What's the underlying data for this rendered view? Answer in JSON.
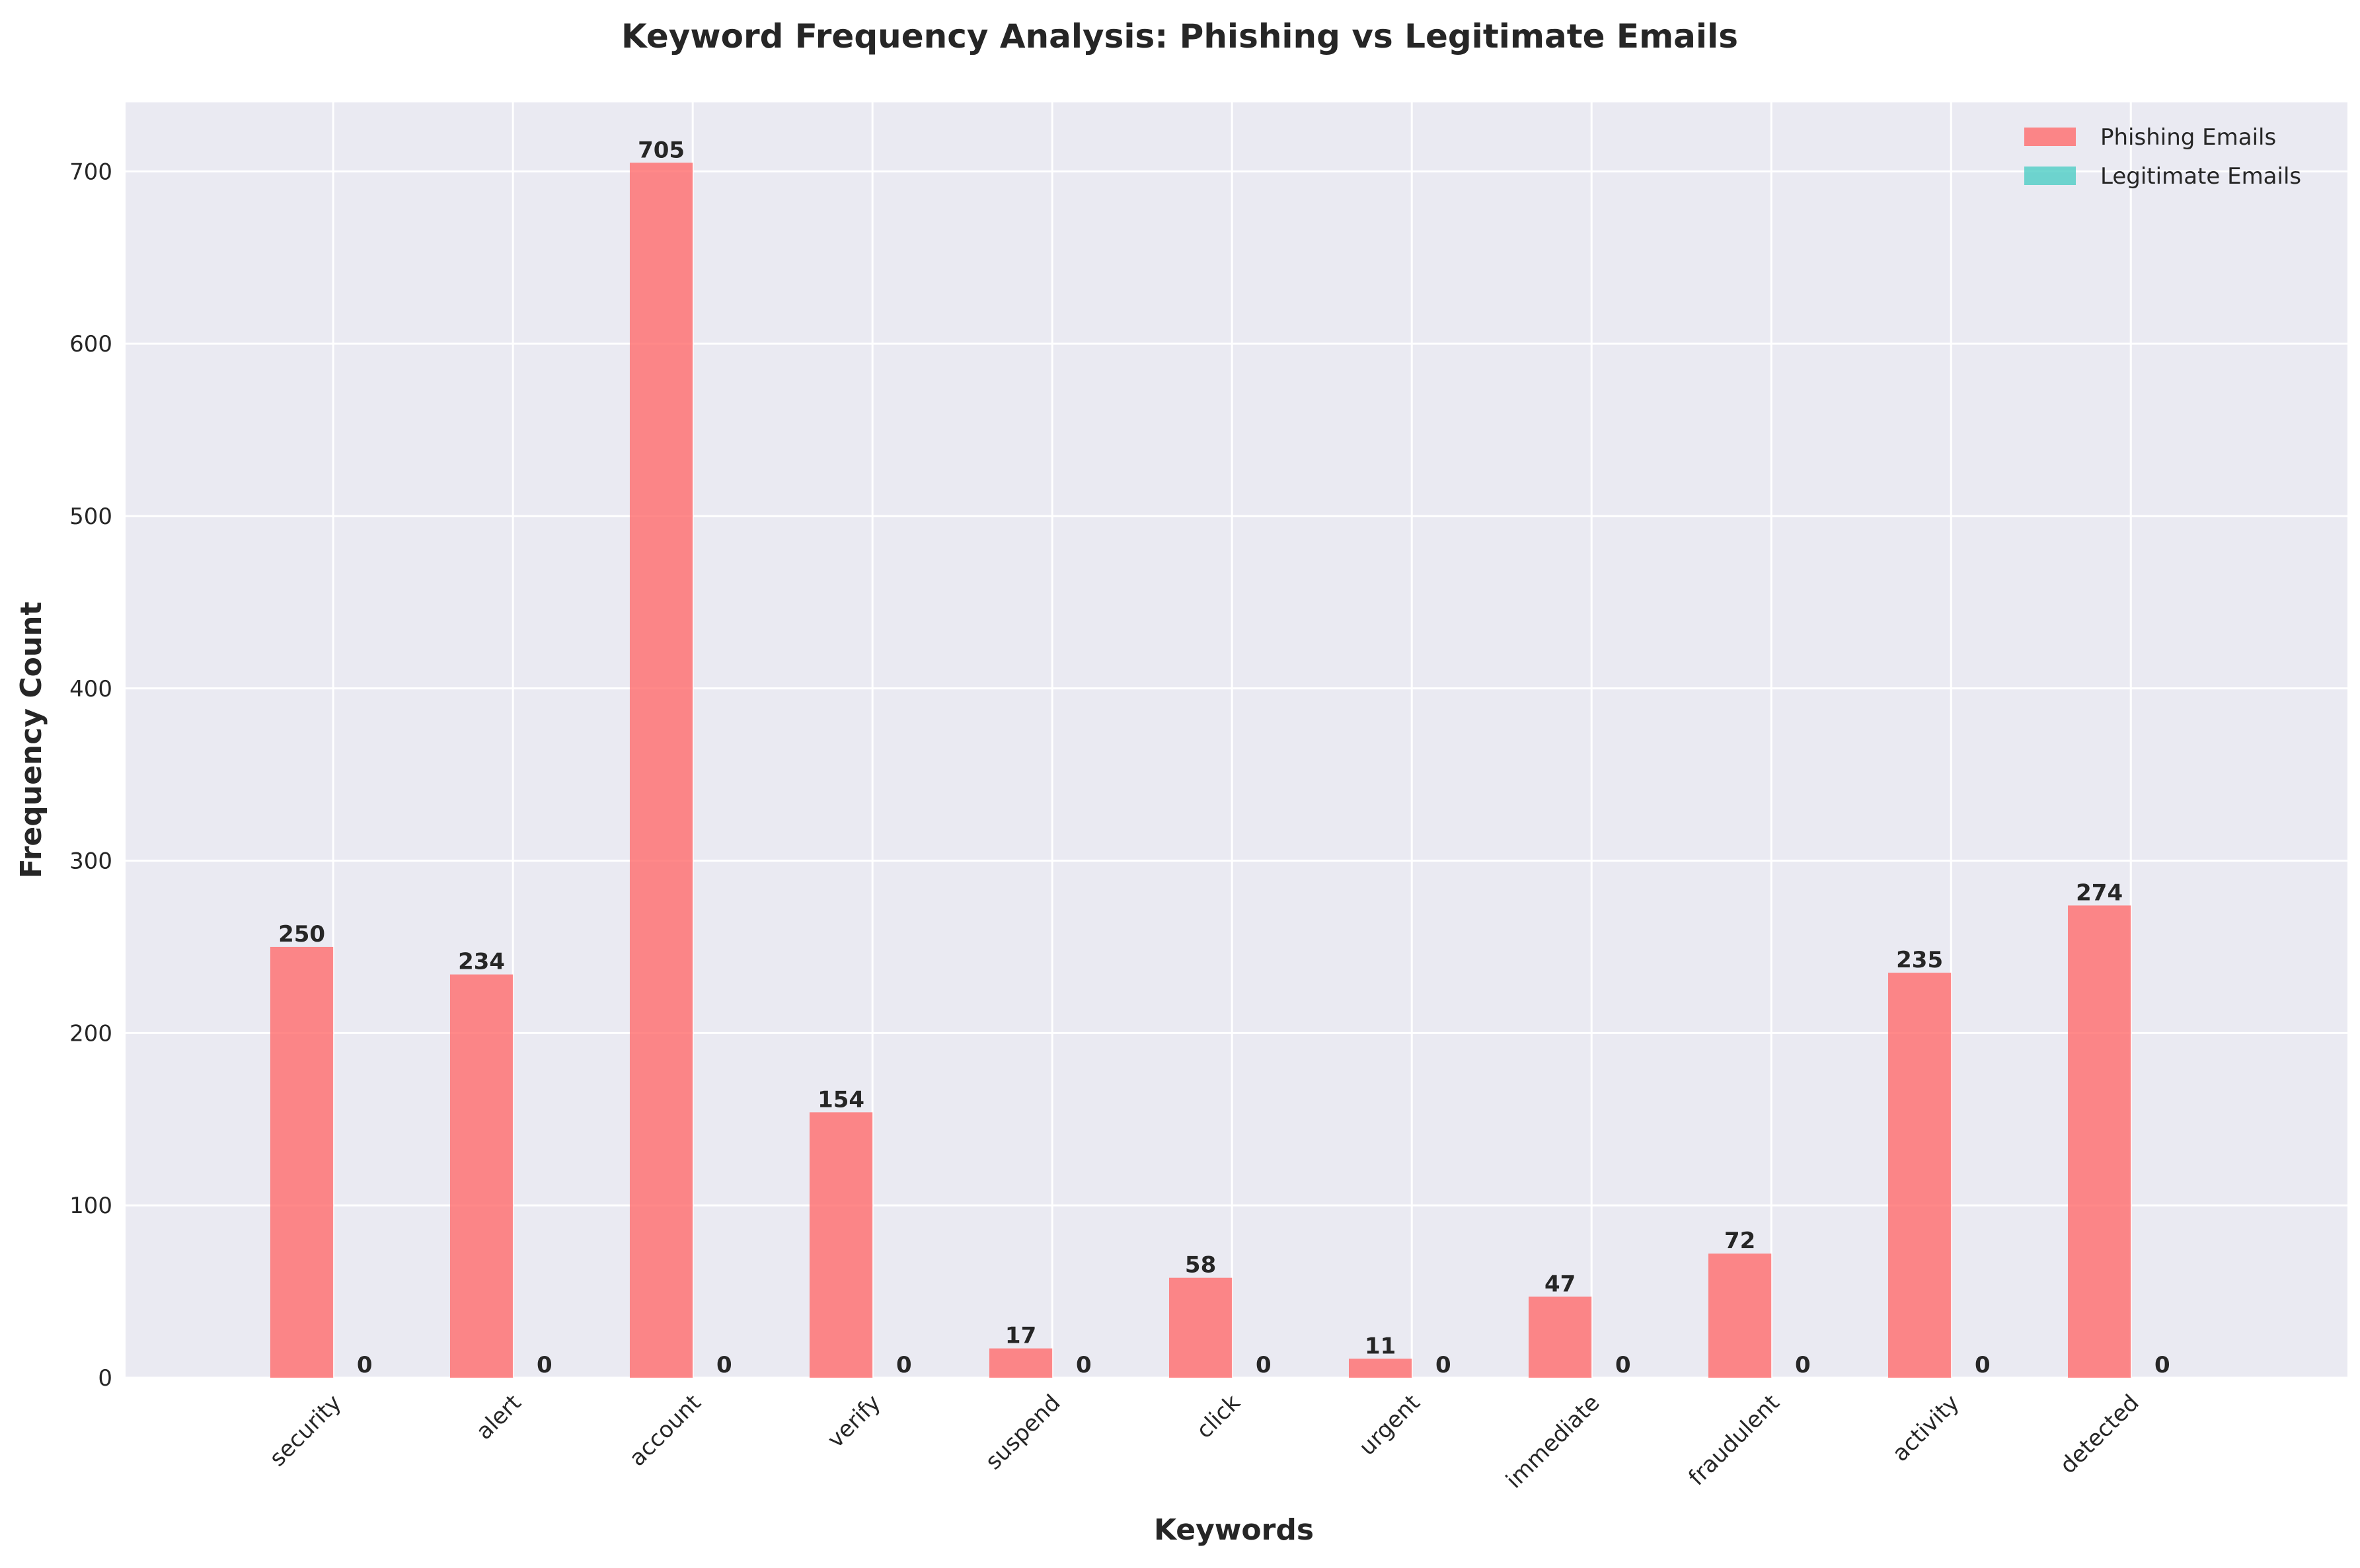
{
  "chart_data": {
    "type": "bar",
    "title": "Keyword Frequency Analysis: Phishing vs Legitimate Emails",
    "xlabel": "Keywords",
    "ylabel": "Frequency Count",
    "categories": [
      "security",
      "alert",
      "account",
      "verify",
      "suspend",
      "click",
      "urgent",
      "immediate",
      "fraudulent",
      "activity",
      "detected"
    ],
    "series": [
      {
        "name": "Phishing Emails",
        "color": "#ff6b6b",
        "values": [
          250,
          234,
          705,
          154,
          17,
          58,
          11,
          47,
          72,
          235,
          274
        ]
      },
      {
        "name": "Legitimate Emails",
        "color": "#4ecdc4",
        "values": [
          0,
          0,
          0,
          0,
          0,
          0,
          0,
          0,
          0,
          0,
          0
        ]
      }
    ],
    "ylim": [
      0,
      740
    ],
    "yticks": [
      "0",
      "100",
      "200",
      "300",
      "400",
      "500",
      "600",
      "700"
    ],
    "grid": true,
    "legend_position": "top-right",
    "background_color": "#eaeaf2"
  }
}
